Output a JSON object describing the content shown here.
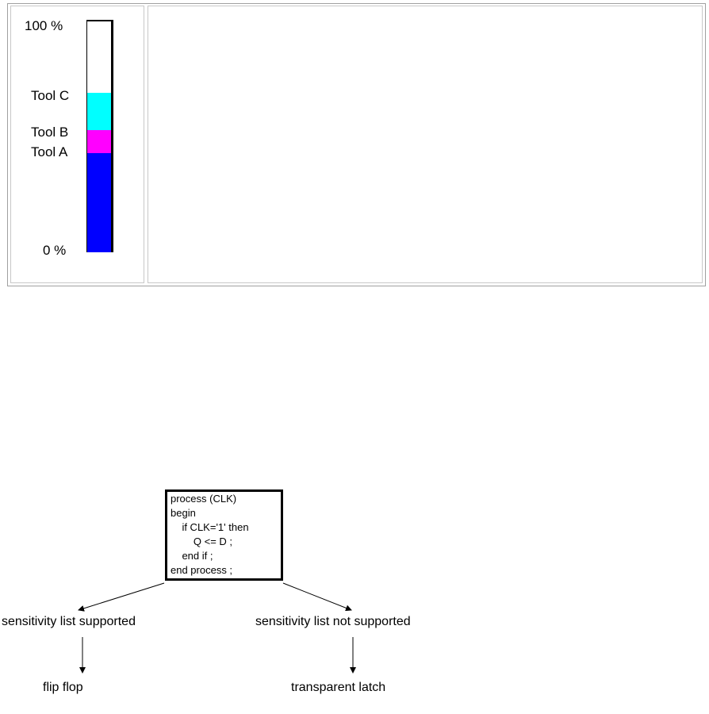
{
  "bar_chart": {
    "top_label": "100 %",
    "bottom_label": "0 %",
    "segments": [
      {
        "name": "Tool A",
        "from": 0,
        "to": 43,
        "color": "#0000ff"
      },
      {
        "name": "Tool B",
        "from": 43,
        "to": 53,
        "color": "#ff00ff"
      },
      {
        "name": "Tool C",
        "from": 53,
        "to": 69,
        "color": "#00ffff"
      }
    ]
  },
  "diagram": {
    "code_lines": [
      "process (CLK)",
      "begin",
      "    if CLK='1' then",
      "        Q <= D ;",
      "    end if ;",
      "end process ;"
    ],
    "left_branch": "sensitivity list supported",
    "right_branch": "sensitivity list not supported",
    "left_result": "flip flop",
    "right_result": "transparent latch"
  },
  "colors": {
    "tool_a": "#0000ff",
    "tool_b": "#ff00ff",
    "tool_c": "#00ffff",
    "frame": "#a0a0a0"
  }
}
